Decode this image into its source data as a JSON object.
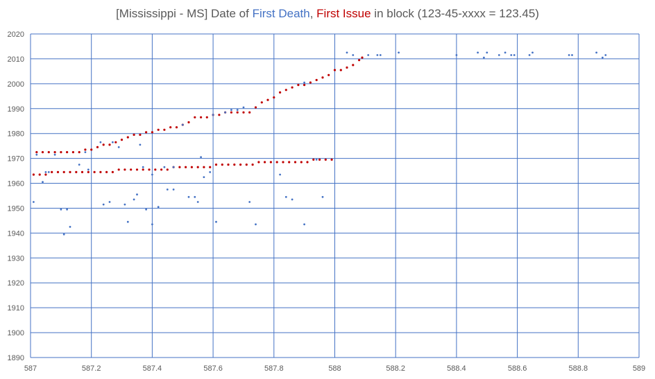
{
  "chart_data": {
    "type": "scatter",
    "title": {
      "prefix": "[Mississippi - MS] Date of ",
      "death_label": "First Death",
      "separator": ", ",
      "issue_label": "First Issue",
      "suffix": " in block (123-45-xxxx = 123.45)"
    },
    "xlim": [
      587,
      589
    ],
    "ylim": [
      1890,
      2020
    ],
    "x_ticks": [
      "587",
      "587.2",
      "587.4",
      "587.6",
      "587.8",
      "588",
      "588.2",
      "588.4",
      "588.6",
      "588.8",
      "589"
    ],
    "y_ticks": [
      "1890",
      "1900",
      "1910",
      "1920",
      "1930",
      "1940",
      "1950",
      "1960",
      "1970",
      "1980",
      "1990",
      "2000",
      "2010",
      "2020"
    ],
    "grid": true,
    "legend": "none",
    "colors": {
      "first_death": "#4472C4",
      "first_issue": "#C00000",
      "grid": "#4472C4",
      "text": "#595959"
    },
    "series": [
      {
        "key": "first_issue",
        "points": [
          [
            587.01,
            1963.5
          ],
          [
            587.03,
            1963.5
          ],
          [
            587.05,
            1963.5
          ],
          [
            587.07,
            1964.5
          ],
          [
            587.09,
            1964.5
          ],
          [
            587.11,
            1964.5
          ],
          [
            587.13,
            1964.5
          ],
          [
            587.15,
            1964.5
          ],
          [
            587.17,
            1964.5
          ],
          [
            587.19,
            1964.5
          ],
          [
            587.21,
            1964.5
          ],
          [
            587.23,
            1964.5
          ],
          [
            587.25,
            1964.5
          ],
          [
            587.27,
            1964.5
          ],
          [
            587.29,
            1965.5
          ],
          [
            587.31,
            1965.5
          ],
          [
            587.33,
            1965.5
          ],
          [
            587.35,
            1965.5
          ],
          [
            587.37,
            1965.5
          ],
          [
            587.39,
            1965.5
          ],
          [
            587.41,
            1965.5
          ],
          [
            587.43,
            1965.5
          ],
          [
            587.45,
            1965.5
          ],
          [
            587.47,
            1966.5
          ],
          [
            587.49,
            1966.5
          ],
          [
            587.51,
            1966.5
          ],
          [
            587.53,
            1966.5
          ],
          [
            587.55,
            1966.5
          ],
          [
            587.57,
            1966.5
          ],
          [
            587.59,
            1966.5
          ],
          [
            587.61,
            1967.5
          ],
          [
            587.63,
            1967.5
          ],
          [
            587.65,
            1967.5
          ],
          [
            587.67,
            1967.5
          ],
          [
            587.69,
            1967.5
          ],
          [
            587.71,
            1967.5
          ],
          [
            587.73,
            1967.5
          ],
          [
            587.75,
            1968.5
          ],
          [
            587.77,
            1968.5
          ],
          [
            587.79,
            1968.5
          ],
          [
            587.81,
            1968.5
          ],
          [
            587.83,
            1968.5
          ],
          [
            587.85,
            1968.5
          ],
          [
            587.87,
            1968.5
          ],
          [
            587.89,
            1968.5
          ],
          [
            587.91,
            1968.5
          ],
          [
            587.93,
            1969.5
          ],
          [
            587.95,
            1969.5
          ],
          [
            587.97,
            1969.5
          ],
          [
            587.99,
            1969.5
          ],
          [
            587.02,
            1972.5
          ],
          [
            587.04,
            1972.5
          ],
          [
            587.06,
            1972.5
          ],
          [
            587.08,
            1972.5
          ],
          [
            587.1,
            1972.5
          ],
          [
            587.12,
            1972.5
          ],
          [
            587.14,
            1972.5
          ],
          [
            587.16,
            1972.5
          ],
          [
            587.18,
            1973.5
          ],
          [
            587.2,
            1973.5
          ],
          [
            587.22,
            1974.5
          ],
          [
            587.24,
            1975.5
          ],
          [
            587.26,
            1975.5
          ],
          [
            587.28,
            1976.5
          ],
          [
            587.3,
            1977.5
          ],
          [
            587.32,
            1978.5
          ],
          [
            587.34,
            1979.5
          ],
          [
            587.36,
            1979.5
          ],
          [
            587.38,
            1980.5
          ],
          [
            587.4,
            1980.5
          ],
          [
            587.42,
            1981.5
          ],
          [
            587.44,
            1981.5
          ],
          [
            587.46,
            1982.5
          ],
          [
            587.48,
            1982.5
          ],
          [
            587.5,
            1983.5
          ],
          [
            587.52,
            1984.5
          ],
          [
            587.54,
            1986.5
          ],
          [
            587.56,
            1986.5
          ],
          [
            587.58,
            1986.5
          ],
          [
            587.6,
            1987.5
          ],
          [
            587.62,
            1987.5
          ],
          [
            587.64,
            1988.5
          ],
          [
            587.66,
            1988.5
          ],
          [
            587.68,
            1988.5
          ],
          [
            587.7,
            1988.5
          ],
          [
            587.72,
            1988.5
          ],
          [
            587.74,
            1990.5
          ],
          [
            587.76,
            1992.5
          ],
          [
            587.78,
            1993.5
          ],
          [
            587.8,
            1994.5
          ],
          [
            587.82,
            1996.5
          ],
          [
            587.84,
            1997.5
          ],
          [
            587.86,
            1998.5
          ],
          [
            587.88,
            1999.5
          ],
          [
            587.9,
            1999.5
          ],
          [
            587.92,
            2000.5
          ],
          [
            587.94,
            2001.5
          ],
          [
            587.96,
            2002.5
          ],
          [
            587.98,
            2003.5
          ],
          [
            588.0,
            2005.5
          ],
          [
            588.02,
            2005.5
          ],
          [
            588.04,
            2006.5
          ],
          [
            588.06,
            2007.5
          ],
          [
            588.08,
            2009.5
          ],
          [
            588.09,
            2010.5
          ]
        ]
      },
      {
        "key": "first_death",
        "points": [
          [
            587.01,
            1952.5
          ],
          [
            587.02,
            1971.5
          ],
          [
            587.04,
            1960.5
          ],
          [
            587.05,
            1964.5
          ],
          [
            587.06,
            1964.5
          ],
          [
            587.08,
            1971.5
          ],
          [
            587.1,
            1949.5
          ],
          [
            587.11,
            1939.5
          ],
          [
            587.12,
            1949.5
          ],
          [
            587.13,
            1942.5
          ],
          [
            587.16,
            1967.5
          ],
          [
            587.18,
            1972.5
          ],
          [
            587.19,
            1965.5
          ],
          [
            587.23,
            1976.5
          ],
          [
            587.24,
            1951.5
          ],
          [
            587.26,
            1952.5
          ],
          [
            587.27,
            1976.5
          ],
          [
            587.29,
            1974.5
          ],
          [
            587.31,
            1951.5
          ],
          [
            587.32,
            1944.5
          ],
          [
            587.34,
            1953.5
          ],
          [
            587.35,
            1955.5
          ],
          [
            587.36,
            1975.5
          ],
          [
            587.37,
            1966.5
          ],
          [
            587.38,
            1949.5
          ],
          [
            587.4,
            1943.5
          ],
          [
            587.4,
            1963.5
          ],
          [
            587.42,
            1950.5
          ],
          [
            587.44,
            1966.5
          ],
          [
            587.45,
            1957.5
          ],
          [
            587.47,
            1957.5
          ],
          [
            587.47,
            1966.5
          ],
          [
            587.5,
            1983.5
          ],
          [
            587.52,
            1954.5
          ],
          [
            587.54,
            1954.5
          ],
          [
            587.55,
            1952.5
          ],
          [
            587.56,
            1970.5
          ],
          [
            587.57,
            1962.5
          ],
          [
            587.59,
            1964.5
          ],
          [
            587.6,
            1987.5
          ],
          [
            587.61,
            1944.5
          ],
          [
            587.64,
            1988.5
          ],
          [
            587.66,
            1989.5
          ],
          [
            587.68,
            1989.5
          ],
          [
            587.7,
            1990.5
          ],
          [
            587.72,
            1952.5
          ],
          [
            587.74,
            1943.5
          ],
          [
            587.82,
            1963.5
          ],
          [
            587.84,
            1954.5
          ],
          [
            587.86,
            1953.5
          ],
          [
            587.9,
            1943.5
          ],
          [
            587.9,
            2000.5
          ],
          [
            587.94,
            1969.5
          ],
          [
            587.96,
            1954.5
          ],
          [
            588.04,
            2012.5
          ],
          [
            588.06,
            2011.5
          ],
          [
            588.11,
            2011.5
          ],
          [
            588.14,
            2011.5
          ],
          [
            588.15,
            2011.5
          ],
          [
            588.21,
            2012.5
          ],
          [
            588.4,
            2011.5
          ],
          [
            588.47,
            2012.5
          ],
          [
            588.49,
            2010.5
          ],
          [
            588.5,
            2012.5
          ],
          [
            588.54,
            2011.5
          ],
          [
            588.56,
            2012.5
          ],
          [
            588.58,
            2011.5
          ],
          [
            588.59,
            2011.5
          ],
          [
            588.64,
            2011.5
          ],
          [
            588.65,
            2012.5
          ],
          [
            588.77,
            2011.5
          ],
          [
            588.78,
            2011.5
          ],
          [
            588.86,
            2012.5
          ],
          [
            588.88,
            2010.5
          ],
          [
            588.89,
            2011.5
          ]
        ]
      }
    ]
  }
}
